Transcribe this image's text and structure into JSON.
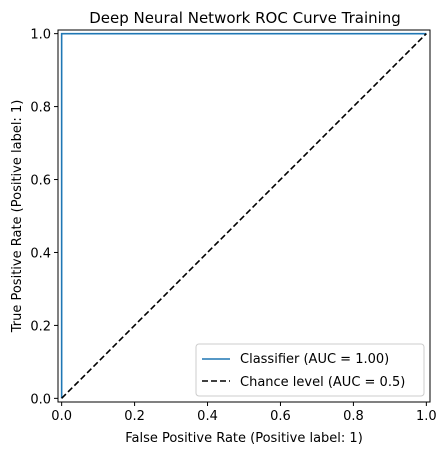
{
  "chart_data": {
    "type": "line",
    "title": "Deep Neural Network ROC Curve Training",
    "xlabel": "False Positive Rate (Positive label: 1)",
    "ylabel": "True Positive Rate (Positive label: 1)",
    "xlim": [
      -0.01,
      1.01
    ],
    "ylim": [
      -0.01,
      1.01
    ],
    "xticks": [
      "0.0",
      "0.2",
      "0.4",
      "0.6",
      "0.8",
      "1.0"
    ],
    "yticks": [
      "0.0",
      "0.2",
      "0.4",
      "0.6",
      "0.8",
      "1.0"
    ],
    "grid": false,
    "legend_position": "lower-right",
    "series": [
      {
        "name": "Classifier (AUC = 1.00)",
        "color": "#1f77b4",
        "style": "solid",
        "x": [
          0.0,
          0.0,
          1.0
        ],
        "y": [
          0.0,
          1.0,
          1.0
        ]
      },
      {
        "name": "Chance level (AUC = 0.5)",
        "color": "#000000",
        "style": "dashed",
        "x": [
          0.0,
          1.0
        ],
        "y": [
          0.0,
          1.0
        ]
      }
    ]
  }
}
